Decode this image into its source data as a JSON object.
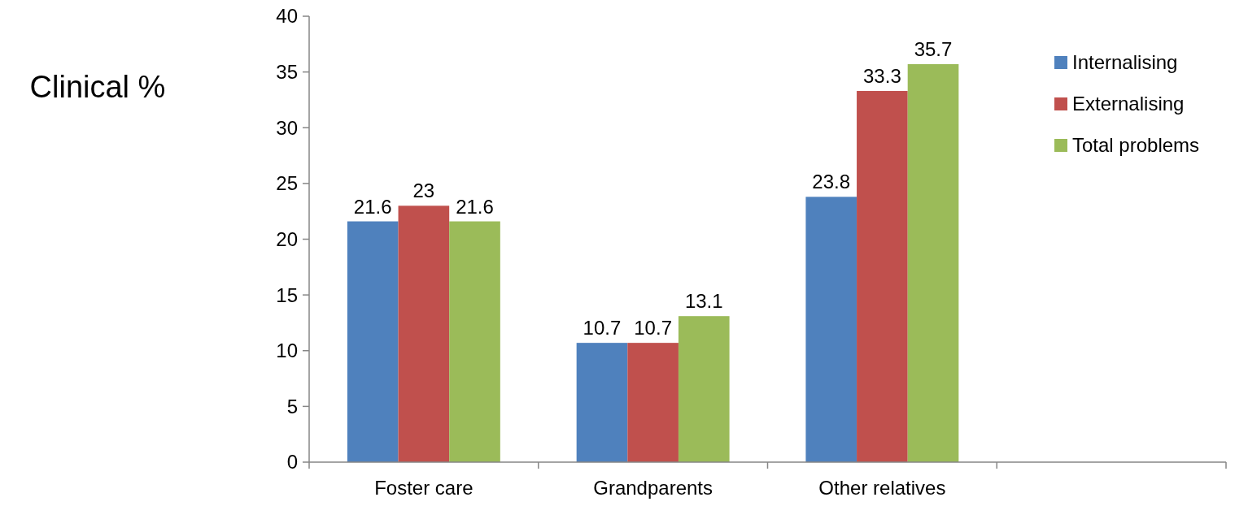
{
  "chart_data": {
    "type": "bar",
    "ylabel": "Clinical %",
    "categories": [
      "Foster care",
      "Grandparents",
      "Other relatives",
      null
    ],
    "series": [
      {
        "name": "Internalising",
        "color": "#4f81bd",
        "values": [
          21.6,
          10.7,
          23.8,
          null
        ]
      },
      {
        "name": "Externalising",
        "color": "#c0504d",
        "values": [
          23,
          10.7,
          33.3,
          null
        ]
      },
      {
        "name": "Total problems",
        "color": "#9bbb59",
        "values": [
          21.6,
          13.1,
          35.7,
          null
        ]
      }
    ],
    "ylim": [
      0,
      40
    ],
    "yticks": [
      0,
      5,
      10,
      15,
      20,
      25,
      30,
      35,
      40
    ],
    "data_labels": true,
    "legend": "top right",
    "grid": false
  }
}
